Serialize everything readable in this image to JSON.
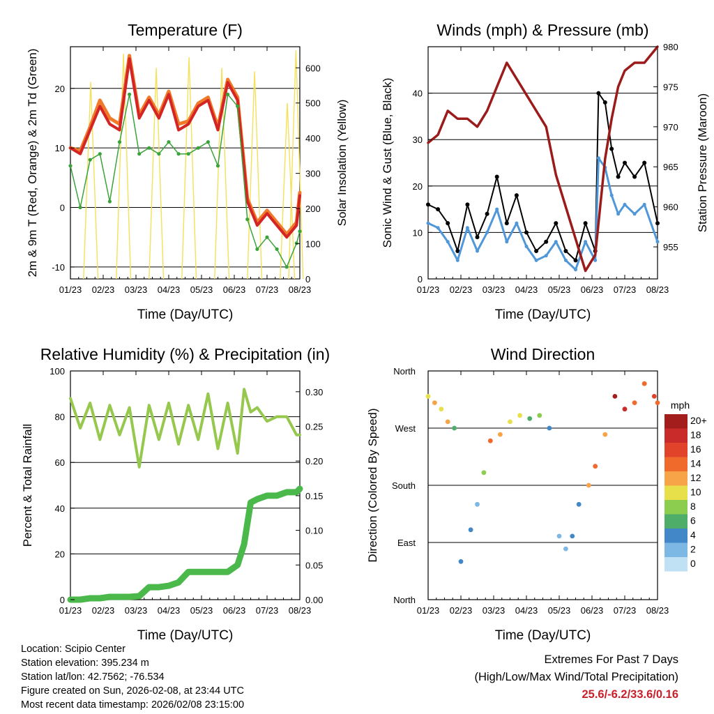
{
  "x_ticks": [
    "01/23",
    "02/23",
    "03/23",
    "04/23",
    "05/23",
    "06/23",
    "07/23",
    "08/23"
  ],
  "info": {
    "location": "Location: Scipio Center",
    "elevation": "Station elevation: 395.234 m",
    "latlon": "Station lat/lon: 42.7562; -76.534",
    "created": "Figure created on Sun, 2026-02-08, at 23:44 UTC",
    "recent": "Most recent data timestamp: 2026/02/08 23:15:00"
  },
  "extremes": {
    "title": "Extremes For Past 7 Days",
    "subtitle": "(High/Low/Max Wind/Total Precipitation)",
    "values": "25.6/-6.2/33.6/0.16"
  },
  "colors": {
    "temp_2m": "#d42525",
    "temp_9m": "#f07a2a",
    "dewpoint": "#3aa33a",
    "solar": "#f5e05a",
    "gust": "#000000",
    "wind": "#4f97d8",
    "pressure": "#9b1b1b",
    "rh": "#96c84e",
    "rain": "#4ab84a"
  },
  "chart_data": [
    {
      "type": "line",
      "title": "Temperature (F)",
      "xlabel": "Time (Day/UTC)",
      "ylabel": "2m & 9m T (Red, Orange) & 2m Td (Green)",
      "ylabel_right": "Solar Insolation (Yellow)",
      "ylim": [
        -12,
        27
      ],
      "ylim_right": [
        0,
        660
      ],
      "yticks": [
        -10,
        0,
        10,
        20
      ],
      "yticks_right": [
        0,
        100,
        200,
        300,
        400,
        500,
        600
      ],
      "x": [
        0,
        0.3,
        0.6,
        0.9,
        1.2,
        1.5,
        1.8,
        2.1,
        2.4,
        2.7,
        3.0,
        3.3,
        3.6,
        3.9,
        4.2,
        4.5,
        4.8,
        5.1,
        5.4,
        5.7,
        6.0,
        6.3,
        6.6,
        6.9,
        7.0
      ],
      "series": [
        {
          "name": "2m T",
          "values": [
            10,
            9,
            13,
            17,
            14,
            13,
            25,
            15,
            18,
            15,
            19,
            13,
            14,
            17,
            18,
            13,
            21,
            18,
            1,
            -3,
            -1,
            -3,
            -5,
            -3,
            2
          ]
        },
        {
          "name": "9m T",
          "values": [
            10,
            9.5,
            13.5,
            18,
            15,
            14,
            25.5,
            15.5,
            18.5,
            15.5,
            19.5,
            14,
            14.5,
            17.5,
            18.5,
            13.5,
            21.5,
            18.5,
            1.5,
            -2.5,
            -0.5,
            -2.5,
            -4.5,
            -2.5,
            2.5
          ]
        },
        {
          "name": "2m Td",
          "values": [
            7,
            0,
            8,
            9,
            1,
            11,
            19,
            9,
            10,
            9,
            11,
            9,
            9,
            10,
            11,
            7,
            19,
            17,
            -2,
            -7,
            -5,
            -7,
            -10,
            -6,
            -4
          ]
        }
      ],
      "solar_peaks": [
        {
          "day": 0.62,
          "value": 560
        },
        {
          "day": 1.62,
          "value": 640
        },
        {
          "day": 2.62,
          "value": 600
        },
        {
          "day": 3.62,
          "value": 630
        },
        {
          "day": 4.62,
          "value": 600
        },
        {
          "day": 5.62,
          "value": 590
        },
        {
          "day": 6.62,
          "value": 500
        },
        {
          "day": 6.88,
          "value": 650
        }
      ]
    },
    {
      "type": "line",
      "title": "Winds (mph) & Pressure (mb)",
      "xlabel": "Time (Day/UTC)",
      "ylabel": "Sonic Wind & Gust (Blue, Black)",
      "ylabel_right": "Station Pressure (Maroon)",
      "ylim": [
        0,
        50
      ],
      "ylim_right": [
        951,
        980
      ],
      "yticks": [
        0,
        10,
        20,
        30,
        40
      ],
      "yticks_right": [
        955,
        960,
        965,
        970,
        975,
        980
      ],
      "x": [
        0,
        0.3,
        0.6,
        0.9,
        1.2,
        1.5,
        1.8,
        2.1,
        2.4,
        2.7,
        3.0,
        3.3,
        3.6,
        3.9,
        4.2,
        4.5,
        4.8,
        5.1,
        5.2,
        5.4,
        5.6,
        5.8,
        6.0,
        6.3,
        6.6,
        7.0
      ],
      "series": [
        {
          "name": "Gust",
          "values": [
            16,
            15,
            12,
            6,
            16,
            9,
            14,
            22,
            12,
            18,
            10,
            6,
            8,
            12,
            6,
            4,
            12,
            6,
            40,
            38,
            28,
            22,
            25,
            22,
            25,
            12
          ]
        },
        {
          "name": "Wind",
          "values": [
            12,
            11,
            8,
            4,
            11,
            6,
            10,
            15,
            8,
            12,
            7,
            4,
            5,
            8,
            4,
            2,
            8,
            4,
            26,
            24,
            18,
            14,
            16,
            14,
            16,
            8
          ]
        },
        {
          "name": "Pressure",
          "values": [
            968,
            969,
            972,
            971,
            971,
            970,
            972,
            975,
            978,
            976,
            974,
            972,
            970,
            964,
            960,
            956,
            952,
            954,
            958,
            966,
            971,
            975,
            977,
            978,
            978,
            980
          ]
        }
      ]
    },
    {
      "type": "line",
      "title": "Relative Humidity (%) & Precipitation (in)",
      "xlabel": "Time (Day/UTC)",
      "ylabel": "Percent & Total Rainfall",
      "ylim": [
        0,
        100
      ],
      "ylim_right": [
        0,
        0.33
      ],
      "yticks": [
        0,
        20,
        40,
        60,
        80,
        100
      ],
      "yticks_right": [
        "0.00",
        "0.05",
        "0.10",
        "0.15",
        "0.20",
        "0.25",
        "0.30"
      ],
      "x": [
        0,
        0.3,
        0.6,
        0.9,
        1.2,
        1.5,
        1.8,
        2.1,
        2.4,
        2.7,
        3.0,
        3.3,
        3.6,
        3.9,
        4.2,
        4.5,
        4.8,
        5.1,
        5.3,
        5.5,
        5.7,
        6.0,
        6.3,
        6.6,
        6.9,
        7.0
      ],
      "series": [
        {
          "name": "RH",
          "values": [
            88,
            75,
            86,
            70,
            85,
            72,
            84,
            58,
            85,
            70,
            86,
            68,
            85,
            70,
            90,
            66,
            86,
            64,
            92,
            82,
            84,
            78,
            80,
            80,
            72,
            72
          ]
        },
        {
          "name": "Precip",
          "values": [
            0,
            0,
            0.002,
            0.002,
            0.004,
            0.004,
            0.004,
            0.005,
            0.018,
            0.018,
            0.02,
            0.025,
            0.04,
            0.04,
            0.04,
            0.04,
            0.04,
            0.05,
            0.08,
            0.14,
            0.145,
            0.15,
            0.15,
            0.155,
            0.155,
            0.16
          ]
        }
      ]
    },
    {
      "type": "scatter",
      "title": "Wind Direction",
      "xlabel": "Time (Day/UTC)",
      "ylabel": "Direction (Colored By Speed)",
      "ylim": [
        0,
        360
      ],
      "yticks": [
        "North",
        "East",
        "South",
        "West",
        "North"
      ],
      "colorbar": {
        "unit": "mph",
        "labels": [
          "20+",
          "18",
          "16",
          "14",
          "12",
          "10",
          "8",
          "6",
          "4",
          "2",
          "0"
        ],
        "colors": [
          "#a31d1d",
          "#c92a2a",
          "#e0422a",
          "#f06a2c",
          "#f7a448",
          "#e8e04a",
          "#8ccc4f",
          "#4fad6a",
          "#4288c8",
          "#7db8e4",
          "#c0e0f4"
        ]
      },
      "x": [
        0,
        0.2,
        0.4,
        0.6,
        0.8,
        1.0,
        1.3,
        1.5,
        1.7,
        1.9,
        2.2,
        2.5,
        2.8,
        3.1,
        3.4,
        3.7,
        4.0,
        4.2,
        4.4,
        4.6,
        4.9,
        5.1,
        5.4,
        5.7,
        6.0,
        6.3,
        6.6,
        6.9,
        7.0
      ],
      "values": [
        320,
        310,
        300,
        280,
        270,
        60,
        110,
        150,
        200,
        250,
        260,
        280,
        290,
        285,
        290,
        270,
        100,
        80,
        100,
        150,
        180,
        210,
        260,
        320,
        300,
        310,
        340,
        320,
        310
      ],
      "speeds": [
        10,
        12,
        10,
        12,
        6,
        3,
        4,
        2,
        8,
        14,
        12,
        10,
        10,
        6,
        8,
        4,
        2,
        2,
        3,
        4,
        12,
        14,
        12,
        20,
        18,
        14,
        14,
        16,
        14
      ]
    }
  ]
}
